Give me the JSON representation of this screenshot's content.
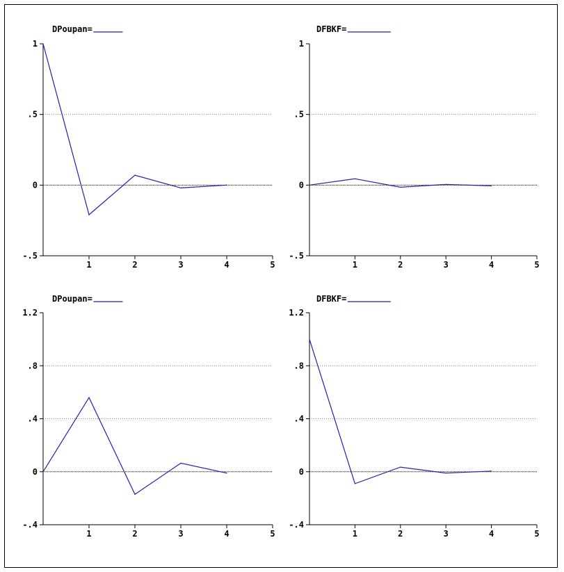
{
  "colors": {
    "line": "#1f1fb0",
    "axis": "#000000",
    "grid": "#808080",
    "background": "#ffffff"
  },
  "chart_data": [
    {
      "type": "line",
      "legend": "DPoupan=",
      "x": [
        0,
        1,
        2,
        3,
        4
      ],
      "y": [
        1.0,
        -0.21,
        0.07,
        -0.02,
        0.0
      ],
      "xlim": [
        0,
        5
      ],
      "ylim": [
        -0.5,
        1
      ],
      "yticks": [
        1,
        0.5,
        0,
        -0.5
      ],
      "ytick_labels": [
        "1",
        ".5",
        "0",
        "-.5"
      ],
      "xticks": [
        1,
        2,
        3,
        4,
        5
      ],
      "xtick_labels": [
        "1",
        "2",
        "3",
        "4",
        "5"
      ],
      "gridlines": [
        0.5
      ],
      "zero_line": 0
    },
    {
      "type": "line",
      "legend": "DFBKF=",
      "x": [
        0,
        1,
        2,
        3,
        4
      ],
      "y": [
        0.0,
        0.045,
        -0.015,
        0.005,
        -0.005
      ],
      "xlim": [
        0,
        5
      ],
      "ylim": [
        -0.5,
        1
      ],
      "yticks": [
        1,
        0.5,
        0,
        -0.5
      ],
      "ytick_labels": [
        "1",
        ".5",
        "0",
        "-.5"
      ],
      "xticks": [
        1,
        2,
        3,
        4,
        5
      ],
      "xtick_labels": [
        "1",
        "2",
        "3",
        "4",
        "5"
      ],
      "gridlines": [
        0.5
      ],
      "zero_line": 0
    },
    {
      "type": "line",
      "legend": "DPoupan=",
      "x": [
        0,
        1,
        2,
        3,
        4
      ],
      "y": [
        0.0,
        0.56,
        -0.17,
        0.065,
        -0.01
      ],
      "xlim": [
        0,
        5
      ],
      "ylim": [
        -0.4,
        1.2
      ],
      "yticks": [
        1.2,
        0.8,
        0.4,
        0,
        -0.4
      ],
      "ytick_labels": [
        "1.2",
        ".8",
        ".4",
        "0",
        "-.4"
      ],
      "xticks": [
        1,
        2,
        3,
        4,
        5
      ],
      "xtick_labels": [
        "1",
        "2",
        "3",
        "4",
        "5"
      ],
      "gridlines": [
        0.8,
        0.4
      ],
      "zero_line": 0
    },
    {
      "type": "line",
      "legend": "DFBKF=",
      "x": [
        0,
        1,
        2,
        3,
        4
      ],
      "y": [
        1.0,
        -0.09,
        0.035,
        -0.01,
        0.005
      ],
      "xlim": [
        0,
        5
      ],
      "ylim": [
        -0.4,
        1.2
      ],
      "yticks": [
        1.2,
        0.8,
        0.4,
        0,
        -0.4
      ],
      "ytick_labels": [
        "1.2",
        ".8",
        ".4",
        "0",
        "-.4"
      ],
      "xticks": [
        1,
        2,
        3,
        4,
        5
      ],
      "xtick_labels": [
        "1",
        "2",
        "3",
        "4",
        "5"
      ],
      "gridlines": [
        0.8,
        0.4
      ],
      "zero_line": 0
    }
  ]
}
